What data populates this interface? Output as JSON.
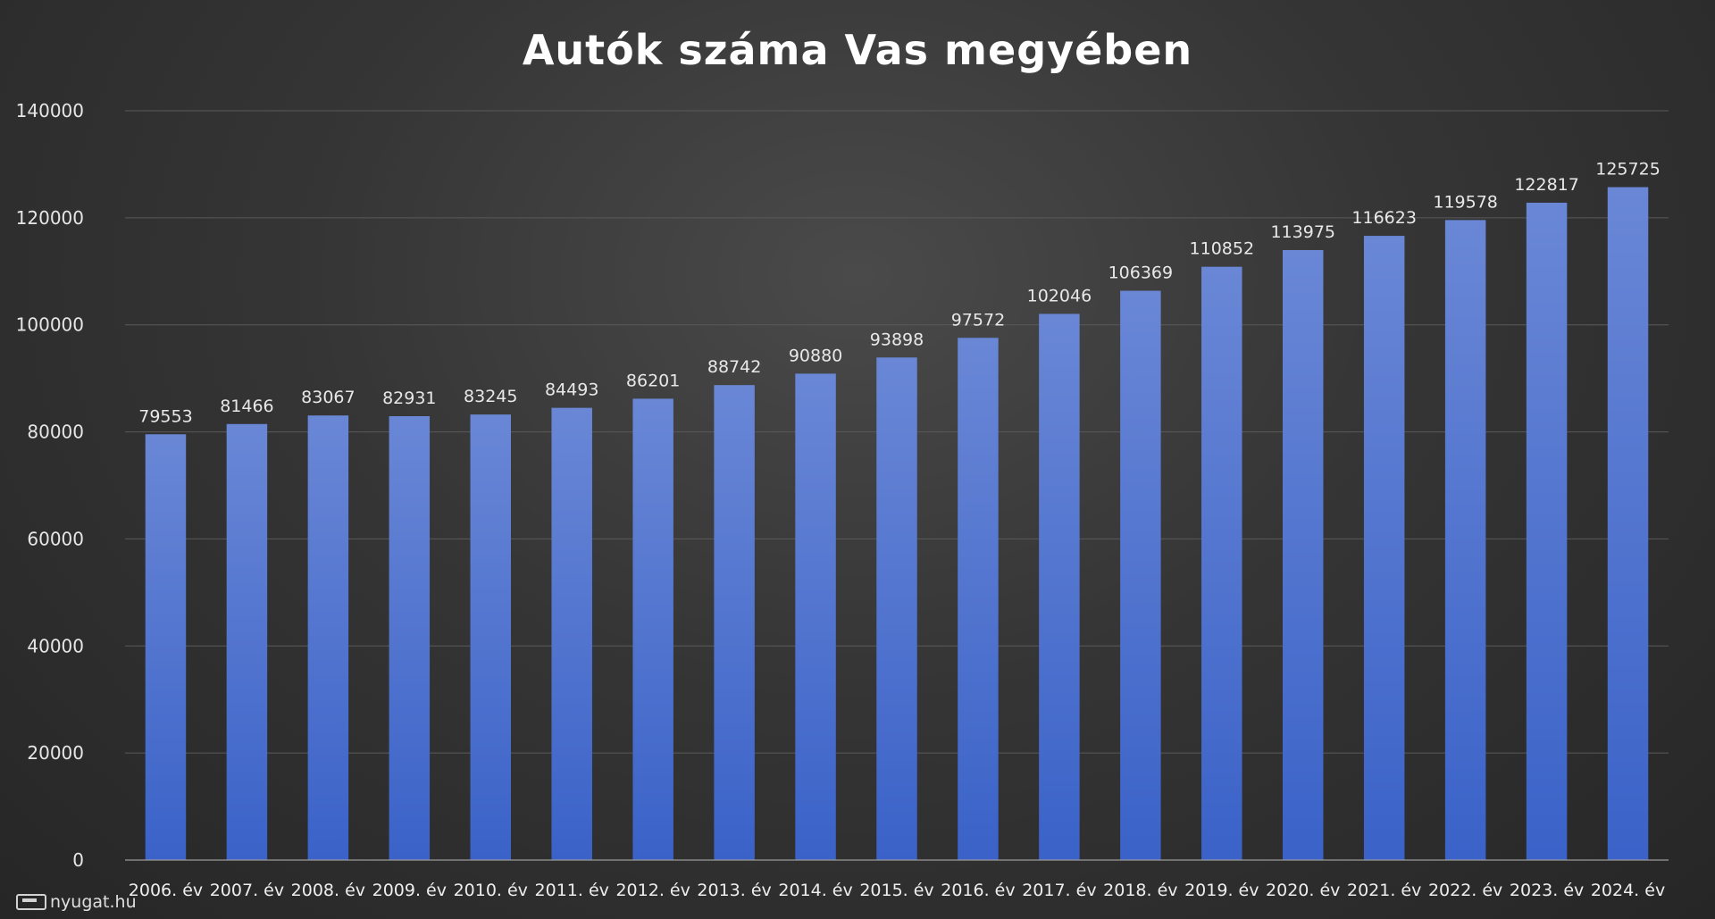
{
  "chart_data": {
    "type": "bar",
    "title": "Autók száma  Vas megyében",
    "xlabel": "",
    "ylabel": "",
    "ylim": [
      0,
      140000
    ],
    "yticks": [
      0,
      20000,
      40000,
      60000,
      80000,
      100000,
      120000,
      140000
    ],
    "grid": true,
    "legend": "none",
    "bar_color_top": "#6a87d6",
    "bar_color_bottom": "#3a62c8",
    "categories": [
      "2006. év",
      "2007. év",
      "2008. év",
      "2009. év",
      "2010. év",
      "2011. év",
      "2012. év",
      "2013. év",
      "2014. év",
      "2015. év",
      "2016. év",
      "2017. év",
      "2018. év",
      "2019. év",
      "2020. év",
      "2021. év",
      "2022. év",
      "2023. év",
      "2024. év"
    ],
    "values": [
      79553,
      81466,
      83067,
      82931,
      83245,
      84493,
      86201,
      88742,
      90880,
      93898,
      97572,
      102046,
      106369,
      110852,
      113975,
      116623,
      119578,
      122817,
      125725
    ]
  },
  "watermark": {
    "text": "nyugat.hu",
    "icon": "camera-icon"
  }
}
